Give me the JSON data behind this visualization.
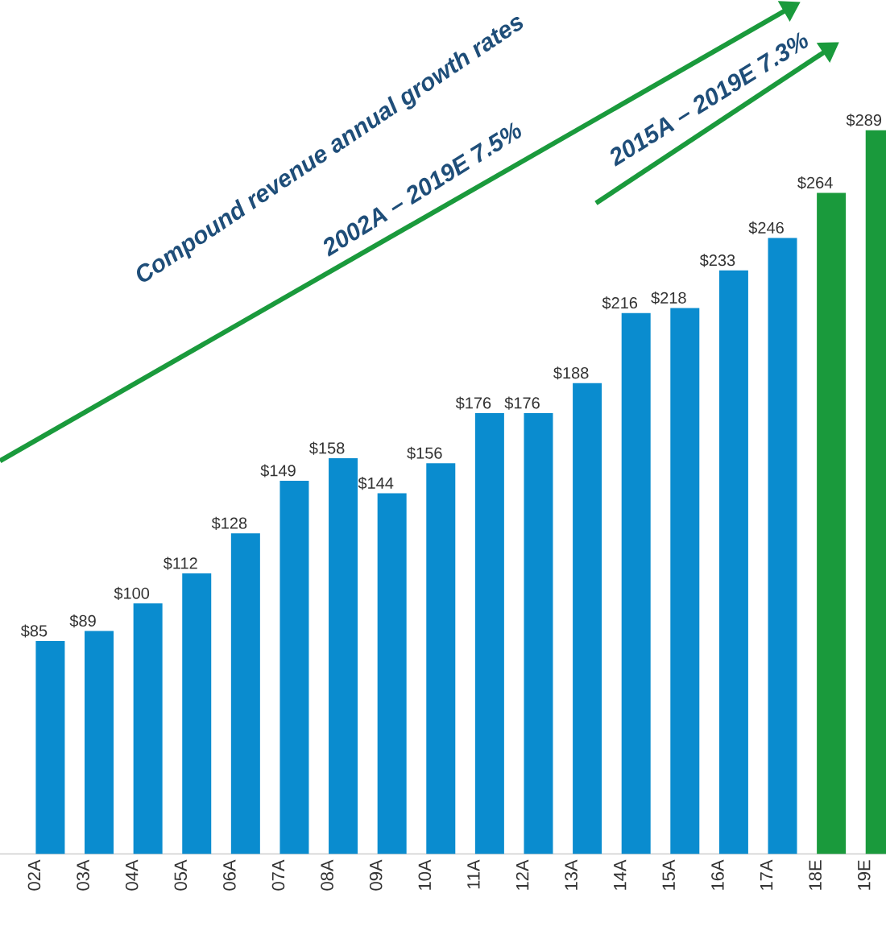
{
  "chart_data": {
    "type": "bar",
    "categories": [
      "02A",
      "03A",
      "04A",
      "05A",
      "06A",
      "07A",
      "08A",
      "09A",
      "10A",
      "11A",
      "12A",
      "13A",
      "14A",
      "15A",
      "16A",
      "17A",
      "18E",
      "19E"
    ],
    "values": [
      85,
      89,
      100,
      112,
      128,
      149,
      158,
      144,
      156,
      176,
      176,
      188,
      216,
      218,
      233,
      246,
      264,
      289
    ],
    "value_labels": [
      "$85",
      "$89",
      "$100",
      "$112",
      "$128",
      "$149",
      "$158",
      "$144",
      "$156",
      "$176",
      "$176",
      "$188",
      "$216",
      "$218",
      "$233",
      "$246",
      "$264",
      "$289"
    ],
    "colors": [
      "#0a8ccf",
      "#0a8ccf",
      "#0a8ccf",
      "#0a8ccf",
      "#0a8ccf",
      "#0a8ccf",
      "#0a8ccf",
      "#0a8ccf",
      "#0a8ccf",
      "#0a8ccf",
      "#0a8ccf",
      "#0a8ccf",
      "#0a8ccf",
      "#0a8ccf",
      "#0a8ccf",
      "#0a8ccf",
      "#1a9a3c",
      "#1a9a3c"
    ],
    "annotations": [
      "Compound revenue annual growth rates",
      "2002A – 2019E 7.5%",
      "2015A – 2019E 7.3%"
    ]
  }
}
